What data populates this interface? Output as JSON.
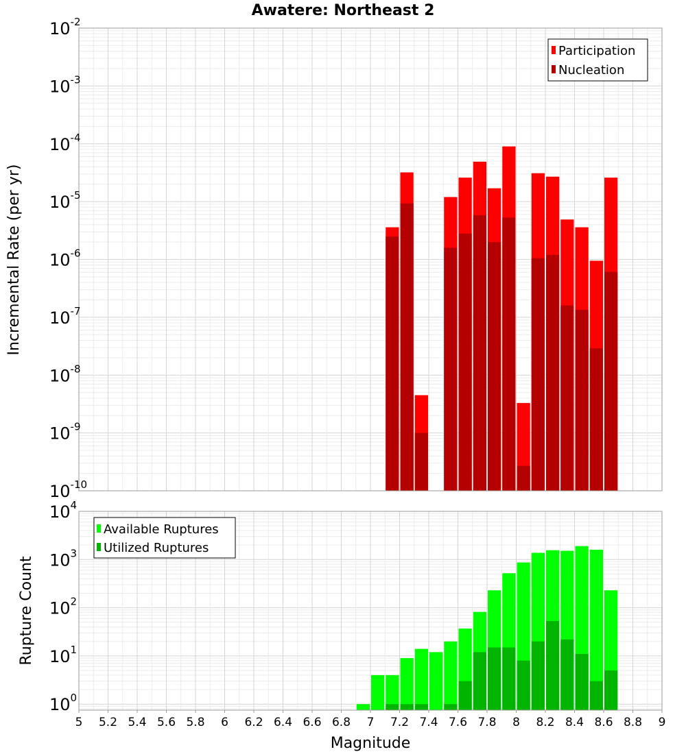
{
  "chart_data": [
    {
      "type": "bar",
      "title": "Awatere: Northeast 2",
      "xlabel": "",
      "ylabel": "Incremental Rate (per yr)",
      "xlim": [
        5,
        9
      ],
      "ylim": [
        1e-10,
        0.01
      ],
      "yscale": "log",
      "grid": true,
      "legend_position": "top-right",
      "series": [
        {
          "name": "Participation",
          "color": "#ff0000",
          "x": [
            7.1,
            7.2,
            7.3,
            7.5,
            7.6,
            7.7,
            7.8,
            7.9,
            8.0,
            8.1,
            8.2,
            8.3,
            8.4,
            8.5,
            8.6
          ],
          "values": [
            3.6e-06,
            3.2e-05,
            4.5e-09,
            1.2e-05,
            2.6e-05,
            4.9e-05,
            1.7e-05,
            9e-05,
            3.3e-09,
            3.1e-05,
            2.7e-05,
            4.9e-06,
            3.6e-06,
            9.5e-07,
            2.6e-05
          ]
        },
        {
          "name": "Nucleation",
          "color": "#b40000",
          "x": [
            7.1,
            7.2,
            7.3,
            7.5,
            7.6,
            7.7,
            7.8,
            7.9,
            8.0,
            8.1,
            8.2,
            8.3,
            8.4,
            8.5,
            8.6
          ],
          "values": [
            2.5e-06,
            9.3e-06,
            1e-09,
            1.6e-06,
            2.8e-06,
            5.8e-06,
            2e-06,
            5.3e-06,
            2.7e-10,
            1.05e-06,
            1.2e-06,
            1.6e-07,
            1.35e-07,
            2.9e-08,
            6.1e-07
          ]
        }
      ]
    },
    {
      "type": "bar",
      "xlabel": "Magnitude",
      "ylabel": "Rupture Count",
      "xlim": [
        5,
        9
      ],
      "ylim": [
        0.75,
        10000
      ],
      "yscale": "log",
      "grid": true,
      "legend_position": "top-left",
      "x_tick_labels": [
        "5",
        "5.2",
        "5.4",
        "5.6",
        "5.8",
        "6",
        "6.2",
        "6.4",
        "6.6",
        "6.8",
        "7",
        "7.2",
        "7.4",
        "7.6",
        "7.8",
        "8",
        "8.2",
        "8.4",
        "8.6",
        "8.8",
        "9"
      ],
      "series": [
        {
          "name": "Available Ruptures",
          "color": "#00ff00",
          "x": [
            6.9,
            7.0,
            7.1,
            7.2,
            7.3,
            7.4,
            7.5,
            7.6,
            7.7,
            7.8,
            7.9,
            8.0,
            8.1,
            8.2,
            8.3,
            8.4,
            8.5,
            8.6
          ],
          "values": [
            1,
            4,
            4,
            9,
            14,
            12,
            20,
            37,
            82,
            230,
            520,
            870,
            1380,
            1560,
            1520,
            1900,
            1600,
            230
          ]
        },
        {
          "name": "Utilized Ruptures",
          "color": "#00b400",
          "x": [
            7.1,
            7.2,
            7.3,
            7.5,
            7.6,
            7.7,
            7.8,
            7.9,
            8.0,
            8.1,
            8.2,
            8.3,
            8.4,
            8.5,
            8.6
          ],
          "values": [
            1,
            1,
            1,
            1,
            3,
            12,
            15,
            15,
            8,
            20,
            53,
            22,
            11,
            3,
            5
          ]
        }
      ]
    }
  ]
}
